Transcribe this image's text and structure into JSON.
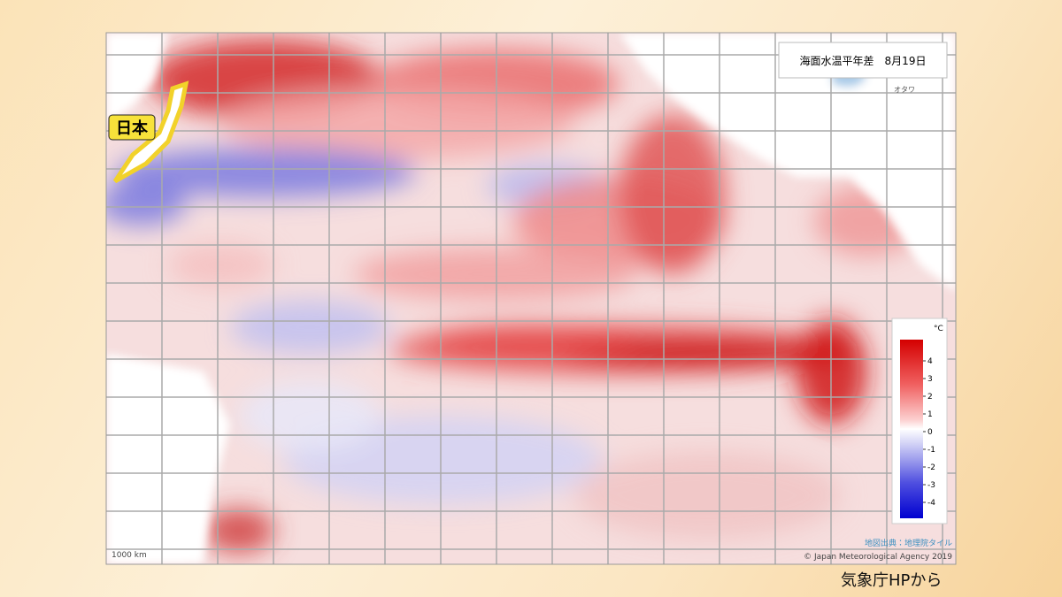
{
  "map": {
    "title": "海面水温平年差　8月19日",
    "japan_label": "日本",
    "city_label": "オタワ",
    "scale_label": "1000 km",
    "map_source": "地図出典：地理院タイル",
    "copyright": "© Japan Meteorological Agency 2019",
    "legend": {
      "unit": "°C",
      "ticks": [
        4,
        3,
        2,
        1,
        0,
        -1,
        -2,
        -3,
        -4
      ]
    }
  },
  "credit": "気象庁HPから"
}
